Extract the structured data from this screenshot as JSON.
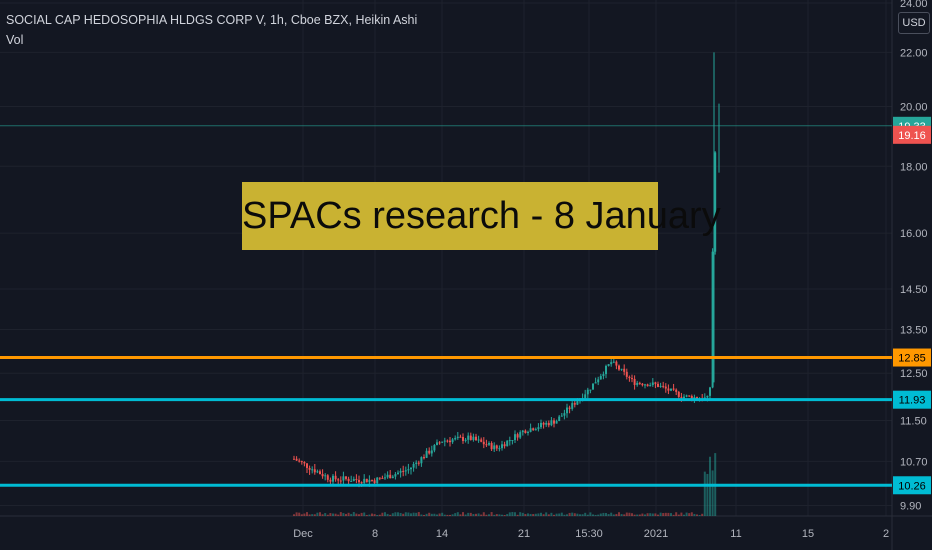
{
  "header": {
    "symbol_line": "SOCIAL CAP HEDOSOPHIA HLDGS CORP V, 1h, Cboe BZX, Heikin Ashi",
    "volume_label": "Vol"
  },
  "banner_text": "SPACs research - 8 January",
  "currency": "USD",
  "colors": {
    "background": "#131722",
    "up": "#26a69a",
    "down": "#ef5350",
    "orange_line": "#ff9800",
    "cyan_line": "#00bcd4",
    "banner_bg": "#c9b232"
  },
  "chart_data": {
    "type": "candlestick",
    "y_scale": "log",
    "ylim": [
      9.6,
      24.0
    ],
    "y_ticks": [
      "24.00",
      "22.00",
      "20.00",
      "18.00",
      "16.00",
      "14.50",
      "13.50",
      "12.50",
      "11.50",
      "10.70",
      "9.90"
    ],
    "x_ticks": [
      "Dec",
      "8",
      "14",
      "21",
      "15:30",
      "2021",
      "11",
      "15",
      "2"
    ],
    "horizontal_lines": [
      {
        "price": 12.85,
        "label": "12.85",
        "color": "orange"
      },
      {
        "price": 11.93,
        "label": "11.93",
        "color": "cyan"
      },
      {
        "price": 10.26,
        "label": "10.26",
        "color": "cyan"
      }
    ],
    "price_labels": [
      {
        "price": 19.33,
        "label": "19.33",
        "color": "up",
        "line": true
      },
      {
        "price": 19.16,
        "label": "19.16",
        "color": "down",
        "line": false
      }
    ],
    "trend_points": [
      {
        "x": "Dec",
        "price": 10.75
      },
      {
        "x": "Dec",
        "price": 10.38
      },
      {
        "x": "8",
        "price": 10.35
      },
      {
        "x": "8",
        "price": 10.55
      },
      {
        "x": "14",
        "price": 11.1
      },
      {
        "x": "14",
        "price": 11.15
      },
      {
        "x": "14",
        "price": 10.95
      },
      {
        "x": "21",
        "price": 11.3
      },
      {
        "x": "21",
        "price": 11.5
      },
      {
        "x": "15:30",
        "price": 12.15
      },
      {
        "x": "15:30",
        "price": 12.75
      },
      {
        "x": "15:30",
        "price": 12.3
      },
      {
        "x": "2021",
        "price": 12.25
      },
      {
        "x": "2021",
        "price": 12.0
      },
      {
        "x": "2021",
        "price": 11.95
      },
      {
        "x": "11",
        "price": 12.2
      },
      {
        "x": "11",
        "price": 16.0
      },
      {
        "x": "11",
        "price": 19.33
      }
    ]
  }
}
